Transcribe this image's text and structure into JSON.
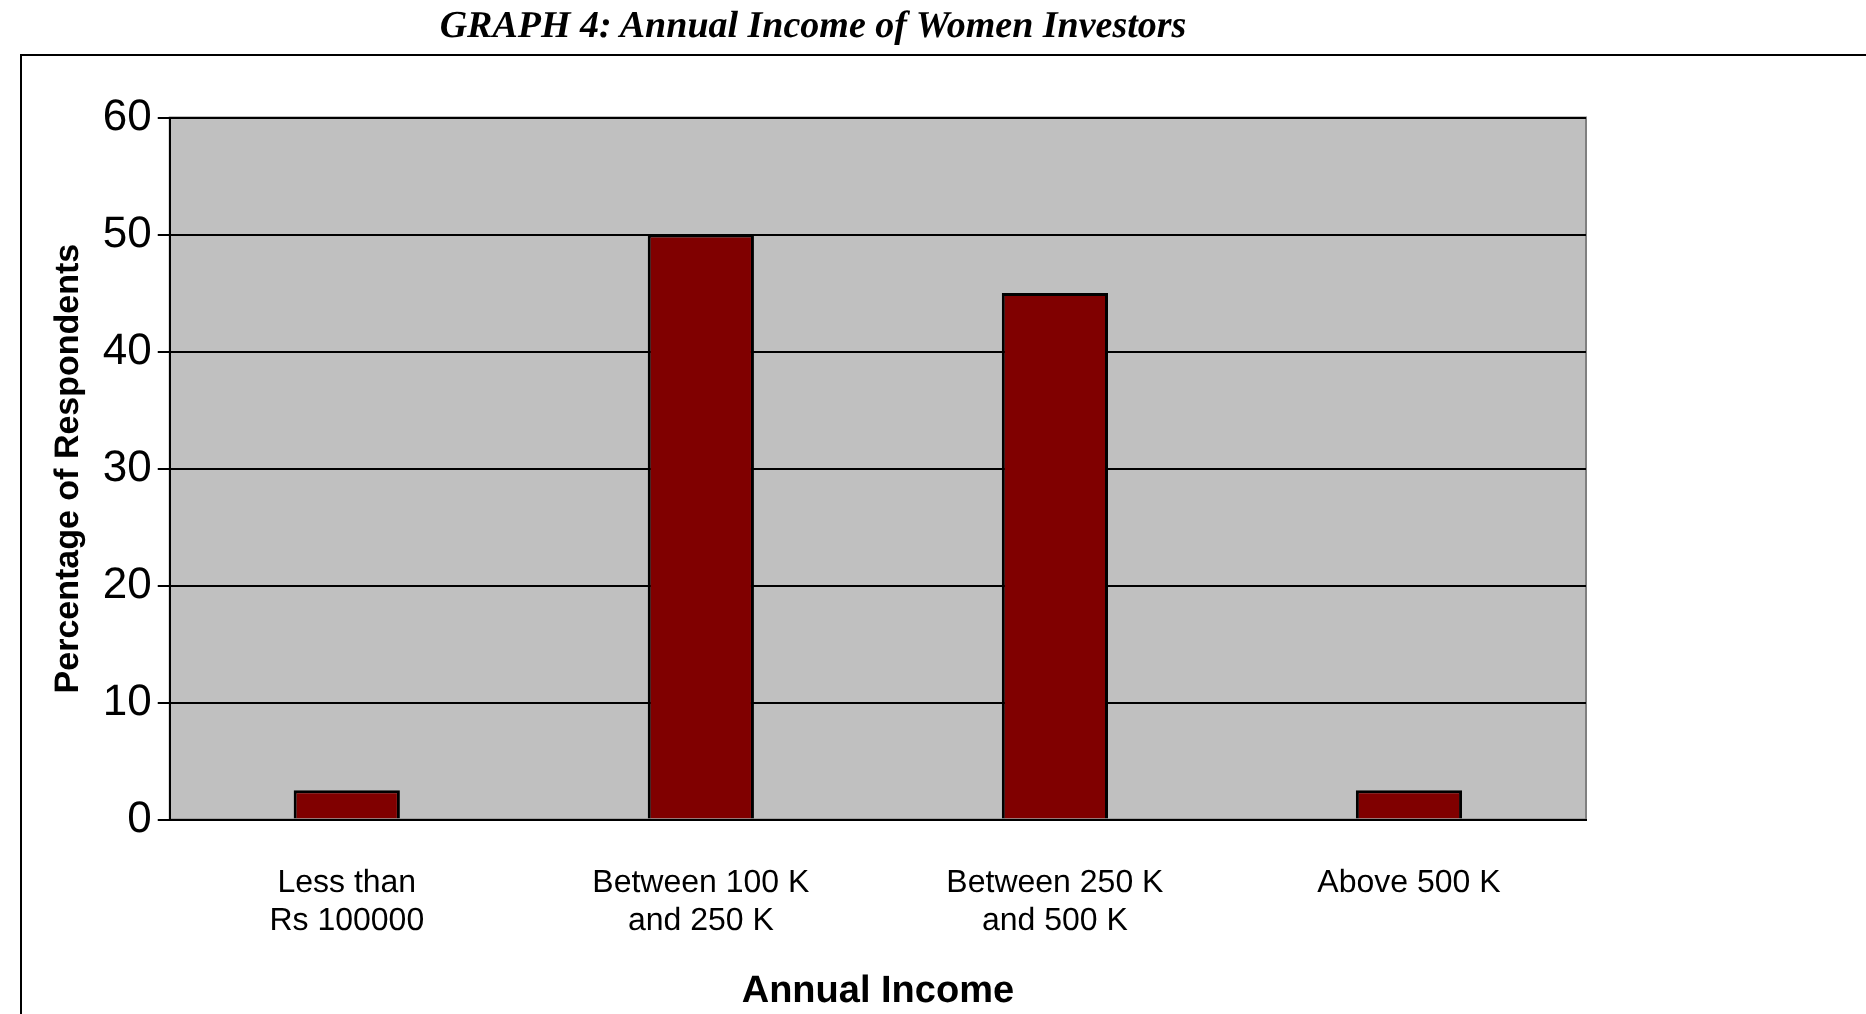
{
  "chart_data": {
    "type": "bar",
    "title": "GRAPH 4: Annual Income of Women Investors",
    "xlabel": "Annual Income",
    "ylabel": "Percentage of Respondents",
    "categories": [
      "Less than\nRs 100000",
      "Between 100 K\nand 250 K",
      "Between 250 K\nand 500 K",
      "Above 500 K"
    ],
    "values": [
      2.5,
      50,
      45,
      2.5
    ],
    "color": "#800000",
    "ylim": [
      0,
      60
    ],
    "yticks": [
      0,
      10,
      20,
      30,
      40,
      50,
      60
    ],
    "grid": "y",
    "legend": false
  }
}
